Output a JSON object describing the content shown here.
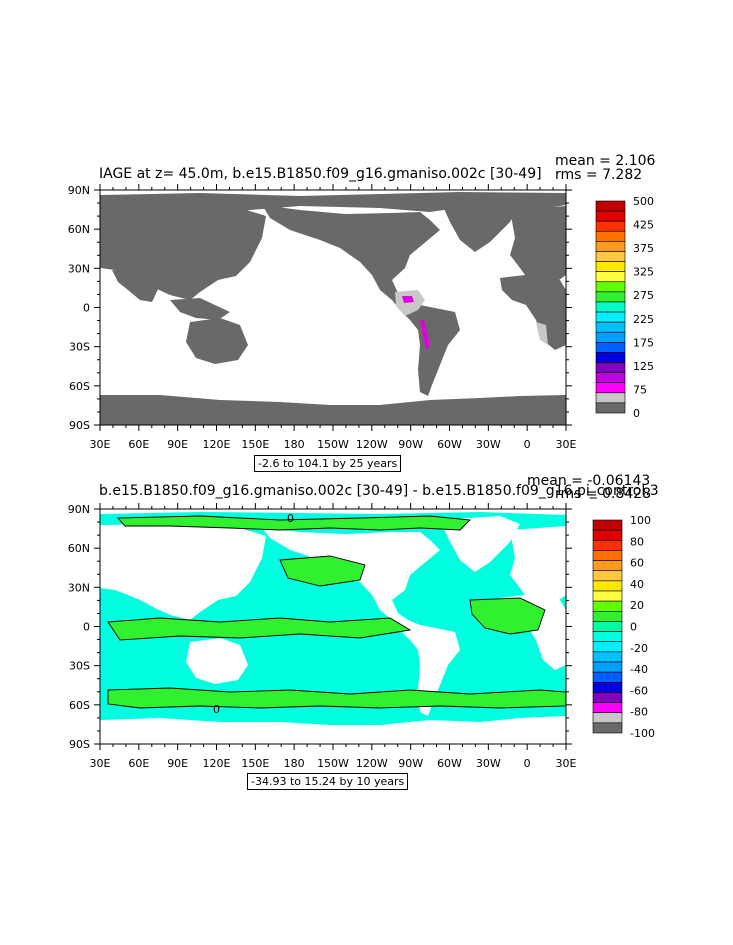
{
  "panels": [
    {
      "title": "IAGE at z=  45.0m, b.e15.B1850.f09_g16.gmaniso.002c [30-49]",
      "mean_label": "mean = 2.106",
      "rms_label": "rms = 7.282",
      "range_label": "-2.6 to 104.1 by 25 years",
      "colorbar_labels": [
        "500",
        "425",
        "375",
        "325",
        "275",
        "225",
        "175",
        "125",
        "75",
        "0"
      ],
      "colors": {
        "land": "#696969",
        "ocean": "#ffffff",
        "low_age": "#c8c8c8",
        "accent": "#e000e0"
      }
    },
    {
      "title": "b.e15.B1850.f09_g16.gmaniso.002c [30-49] - b.e15.B1850.f09_g16.pi_control.3",
      "mean_label": "mean = -0.06143",
      "rms_label": "rms = 0.8428",
      "range_label": "-34.93 to 15.24 by 10 years",
      "colorbar_labels": [
        "100",
        "80",
        "60",
        "40",
        "20",
        "0",
        "-20",
        "-40",
        "-60",
        "-80",
        "-100"
      ],
      "contour_label": "0",
      "colors": {
        "ocean": "#00ffe0",
        "positive": "#30f030",
        "land": "#ffffff"
      }
    }
  ],
  "axes": {
    "lat_labels": [
      "90N",
      "60N",
      "30N",
      "0",
      "30S",
      "60S",
      "90S"
    ],
    "lon_labels": [
      "30E",
      "60E",
      "90E",
      "120E",
      "150E",
      "180",
      "150W",
      "120W",
      "90W",
      "60W",
      "30W",
      "0",
      "30E"
    ]
  },
  "colorbar_colors": {
    "panel1": [
      "#c00000",
      "#e00000",
      "#ff3000",
      "#ff7000",
      "#ff9a20",
      "#ffc840",
      "#ffe800",
      "#ffff40",
      "#60ff00",
      "#30f030",
      "#00ffc8",
      "#00f0ff",
      "#00c0ff",
      "#00a0ff",
      "#0060ff",
      "#0000e0",
      "#8000c0",
      "#c000e0",
      "#ff00ff",
      "#c8c8c8",
      "#696969"
    ],
    "panel2": [
      "#c00000",
      "#e00000",
      "#ff3000",
      "#ff7000",
      "#ff9a20",
      "#ffc840",
      "#ffe800",
      "#ffff40",
      "#60ff00",
      "#30f030",
      "#00ffa0",
      "#00ffe0",
      "#00f0ff",
      "#00c0ff",
      "#00a0ff",
      "#0060ff",
      "#0000e0",
      "#8000c0",
      "#ff00ff",
      "#c8c8c8",
      "#696969"
    ]
  }
}
